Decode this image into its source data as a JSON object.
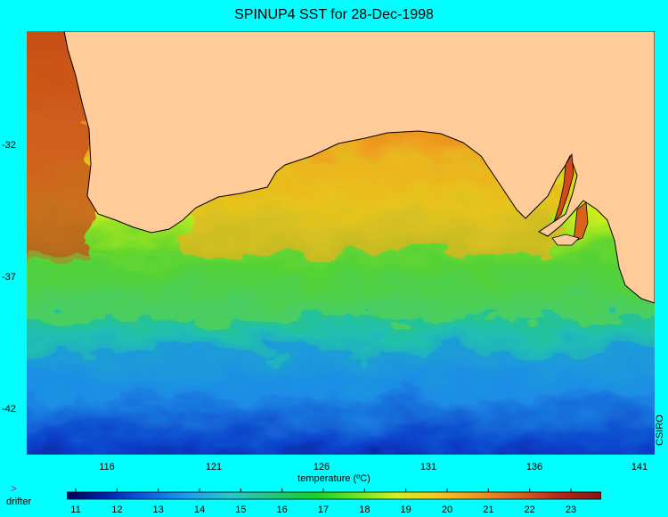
{
  "title": "SPINUP4 SST for 28-Dec-1998",
  "axes": {
    "y_ticks": [
      "-32",
      "-37",
      "-42"
    ],
    "x_ticks": [
      "116",
      "121",
      "126",
      "131",
      "136",
      "141"
    ]
  },
  "credit": "CSIRO",
  "colorbar": {
    "label": "temperature (ºC)",
    "ticks": [
      "11",
      "12",
      "13",
      "14",
      "15",
      "16",
      "17",
      "18",
      "19",
      "20",
      "21",
      "22",
      "23"
    ],
    "colors": [
      "#00005a",
      "#0024b4",
      "#0a64e6",
      "#1ea0f0",
      "#28c8c8",
      "#1ec878",
      "#14d228",
      "#64e61e",
      "#d2f01e",
      "#f5c81e",
      "#f0961e",
      "#e0601e",
      "#b42814",
      "#8c1414"
    ]
  },
  "legend": {
    "symbol": ">",
    "label": "drifter"
  },
  "land_color": "#ffcc99",
  "background_color": "#00ffff"
}
